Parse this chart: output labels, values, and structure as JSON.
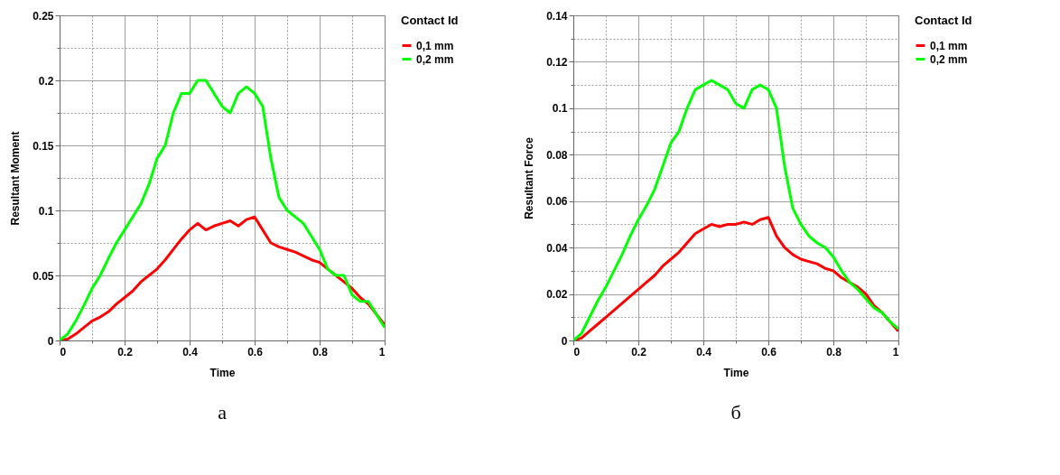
{
  "chart_data": [
    {
      "type": "line",
      "xlabel": "Time",
      "ylabel": "Resultant Moment",
      "legend_title": "Contact Id",
      "legend": "right",
      "grid": true,
      "marker": "none",
      "line_style": "solid",
      "annotations": [
        "а"
      ],
      "xlim": [
        0,
        1
      ],
      "xticks": [
        0,
        {
          "value": 0.1,
          "label": null
        },
        0.2,
        {
          "value": 0.3,
          "label": null
        },
        0.4,
        {
          "value": 0.5,
          "label": null
        },
        0.6,
        {
          "value": 0.7,
          "label": null
        },
        0.8,
        {
          "value": 0.9,
          "label": null
        },
        1
      ],
      "ylim": [
        0,
        0.25
      ],
      "yticks": [
        0,
        {
          "value": 0.025,
          "label": null
        },
        0.05,
        {
          "value": 0.075,
          "label": null
        },
        0.1,
        {
          "value": 0.125,
          "label": null
        },
        0.15,
        {
          "value": 0.175,
          "label": null
        },
        0.2,
        {
          "value": 0.225,
          "label": null
        },
        0.25
      ],
      "x": [
        0,
        0.025,
        0.05,
        0.075,
        0.1,
        0.125,
        0.15,
        0.175,
        0.2,
        0.225,
        0.25,
        0.275,
        0.3,
        0.325,
        0.35,
        0.375,
        0.4,
        0.425,
        0.45,
        0.475,
        0.5,
        0.525,
        0.55,
        0.575,
        0.6,
        0.625,
        0.65,
        0.675,
        0.7,
        0.725,
        0.75,
        0.775,
        0.8,
        0.825,
        0.85,
        0.875,
        0.9,
        0.925,
        0.95,
        0.975,
        1
      ],
      "series": [
        {
          "name": "0,1 mm",
          "color": "#ff0000",
          "values": [
            0,
            0.001,
            0.005,
            0.01,
            0.015,
            0.018,
            0.022,
            0.028,
            0.033,
            0.038,
            0.045,
            0.05,
            0.055,
            0.062,
            0.07,
            0.078,
            0.085,
            0.09,
            0.085,
            0.088,
            0.09,
            0.092,
            0.088,
            0.093,
            0.095,
            0.085,
            0.075,
            0.072,
            0.07,
            0.068,
            0.065,
            0.062,
            0.06,
            0.055,
            0.05,
            0.045,
            0.04,
            0.033,
            0.028,
            0.02,
            0.012
          ]
        },
        {
          "name": "0,2 mm",
          "color": "#00ff00",
          "values": [
            0,
            0.005,
            0.015,
            0.027,
            0.04,
            0.05,
            0.063,
            0.075,
            0.085,
            0.095,
            0.105,
            0.12,
            0.14,
            0.15,
            0.175,
            0.19,
            0.19,
            0.2,
            0.2,
            0.19,
            0.18,
            0.175,
            0.19,
            0.195,
            0.19,
            0.18,
            0.14,
            0.11,
            0.1,
            0.095,
            0.09,
            0.08,
            0.07,
            0.055,
            0.05,
            0.05,
            0.035,
            0.03,
            0.03,
            0.02,
            0.01
          ]
        }
      ]
    },
    {
      "type": "line",
      "xlabel": "Time",
      "ylabel": "Resultant Force",
      "legend_title": "Contact Id",
      "legend": "right",
      "grid": true,
      "marker": "none",
      "line_style": "solid",
      "annotations": [
        "б"
      ],
      "xlim": [
        0,
        1
      ],
      "xticks": [
        0,
        {
          "value": 0.1,
          "label": null
        },
        0.2,
        {
          "value": 0.3,
          "label": null
        },
        0.4,
        {
          "value": 0.5,
          "label": null
        },
        0.6,
        {
          "value": 0.7,
          "label": null
        },
        0.8,
        {
          "value": 0.9,
          "label": null
        },
        1
      ],
      "ylim": [
        0,
        0.14
      ],
      "yticks": [
        0,
        {
          "value": 0.01,
          "label": null
        },
        0.02,
        {
          "value": 0.03,
          "label": null
        },
        0.04,
        {
          "value": 0.05,
          "label": null
        },
        0.06,
        {
          "value": 0.07,
          "label": null
        },
        0.08,
        {
          "value": 0.09,
          "label": null
        },
        0.1,
        {
          "value": 0.11,
          "label": null
        },
        0.12,
        {
          "value": 0.13,
          "label": null
        },
        0.14
      ],
      "x": [
        0,
        0.025,
        0.05,
        0.075,
        0.1,
        0.125,
        0.15,
        0.175,
        0.2,
        0.225,
        0.25,
        0.275,
        0.3,
        0.325,
        0.35,
        0.375,
        0.4,
        0.425,
        0.45,
        0.475,
        0.5,
        0.525,
        0.55,
        0.575,
        0.6,
        0.625,
        0.65,
        0.675,
        0.7,
        0.725,
        0.75,
        0.775,
        0.8,
        0.825,
        0.85,
        0.875,
        0.9,
        0.925,
        0.95,
        0.975,
        1
      ],
      "series": [
        {
          "name": "0,1 mm",
          "color": "#ff0000",
          "values": [
            0,
            0.001,
            0.004,
            0.007,
            0.01,
            0.013,
            0.016,
            0.019,
            0.022,
            0.025,
            0.028,
            0.032,
            0.035,
            0.038,
            0.042,
            0.046,
            0.048,
            0.05,
            0.049,
            0.05,
            0.05,
            0.051,
            0.05,
            0.052,
            0.053,
            0.045,
            0.04,
            0.037,
            0.035,
            0.034,
            0.033,
            0.031,
            0.03,
            0.027,
            0.025,
            0.023,
            0.02,
            0.015,
            0.012,
            0.008,
            0.004
          ]
        },
        {
          "name": "0,2 mm",
          "color": "#00ff00",
          "values": [
            0,
            0.003,
            0.01,
            0.017,
            0.023,
            0.03,
            0.037,
            0.045,
            0.052,
            0.058,
            0.065,
            0.075,
            0.085,
            0.09,
            0.1,
            0.108,
            0.11,
            0.112,
            0.11,
            0.108,
            0.102,
            0.1,
            0.108,
            0.11,
            0.108,
            0.1,
            0.075,
            0.057,
            0.05,
            0.045,
            0.042,
            0.04,
            0.036,
            0.03,
            0.025,
            0.022,
            0.018,
            0.014,
            0.012,
            0.008,
            0.005
          ]
        }
      ]
    }
  ]
}
